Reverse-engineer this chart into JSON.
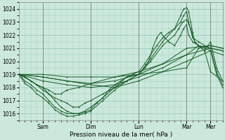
{
  "title": "",
  "xlabel": "Pression niveau de la mer( hPa )",
  "bg_color": "#cce8dc",
  "grid_color": "#99ccb8",
  "line_color": "#1a5c2a",
  "ylim": [
    1015.5,
    1024.5
  ],
  "yticks": [
    1016,
    1017,
    1018,
    1019,
    1020,
    1021,
    1022,
    1023,
    1024
  ],
  "day_labels": [
    "Sam",
    "Dim",
    "Lun",
    "Mar",
    "Mer"
  ],
  "day_positions": [
    24,
    72,
    120,
    168,
    192
  ],
  "xlim": [
    0,
    204
  ],
  "lines": [
    {
      "x": [
        0,
        6,
        12,
        18,
        24,
        30,
        36,
        42,
        48,
        54,
        60,
        66,
        72,
        78,
        84,
        90,
        96,
        102,
        108,
        114,
        120,
        126,
        132,
        138,
        144,
        150,
        156,
        162,
        165,
        168,
        170,
        172,
        174,
        176,
        180,
        186,
        192,
        198,
        204
      ],
      "y": [
        1019.0,
        1018.8,
        1018.5,
        1018.2,
        1018.0,
        1017.5,
        1017.0,
        1016.5,
        1016.2,
        1016.0,
        1016.0,
        1016.1,
        1016.3,
        1016.8,
        1017.2,
        1017.8,
        1018.2,
        1018.5,
        1018.8,
        1019.0,
        1019.2,
        1019.8,
        1020.5,
        1021.2,
        1021.8,
        1022.2,
        1022.5,
        1023.5,
        1024.0,
        1024.1,
        1023.8,
        1023.0,
        1022.2,
        1021.5,
        1021.2,
        1020.8,
        1021.5,
        1019.5,
        1018.5
      ]
    },
    {
      "x": [
        0,
        6,
        12,
        18,
        24,
        30,
        36,
        42,
        48,
        54,
        60,
        66,
        72,
        84,
        96,
        108,
        120,
        132,
        144,
        156,
        162,
        165,
        168,
        170,
        174,
        180,
        186,
        192,
        198,
        204
      ],
      "y": [
        1019.0,
        1018.5,
        1018.2,
        1017.8,
        1017.5,
        1017.0,
        1016.5,
        1016.2,
        1016.0,
        1016.0,
        1016.0,
        1016.2,
        1016.5,
        1017.2,
        1018.0,
        1018.8,
        1019.0,
        1020.2,
        1021.5,
        1022.5,
        1023.0,
        1023.5,
        1023.8,
        1023.0,
        1021.8,
        1021.5,
        1021.2,
        1021.0,
        1019.2,
        1018.2
      ]
    },
    {
      "x": [
        0,
        6,
        12,
        18,
        24,
        30,
        36,
        42,
        48,
        54,
        60,
        66,
        72,
        84,
        96,
        108,
        120,
        132,
        144,
        156,
        160,
        164,
        168,
        172,
        176,
        180,
        186,
        192,
        198,
        204
      ],
      "y": [
        1019.0,
        1018.3,
        1018.0,
        1017.5,
        1017.2,
        1016.8,
        1016.3,
        1016.0,
        1015.8,
        1015.8,
        1015.9,
        1016.0,
        1016.2,
        1017.0,
        1017.8,
        1018.5,
        1019.0,
        1020.0,
        1021.2,
        1022.0,
        1022.5,
        1023.0,
        1023.2,
        1022.5,
        1021.5,
        1021.2,
        1021.0,
        1020.8,
        1019.0,
        1018.0
      ]
    },
    {
      "x": [
        0,
        24,
        48,
        72,
        96,
        120,
        144,
        168,
        192,
        204
      ],
      "y": [
        1019.0,
        1018.8,
        1018.5,
        1018.3,
        1018.5,
        1019.0,
        1019.8,
        1021.0,
        1021.2,
        1021.0
      ]
    },
    {
      "x": [
        0,
        24,
        48,
        72,
        96,
        120,
        144,
        168,
        192,
        204
      ],
      "y": [
        1019.0,
        1018.5,
        1018.2,
        1018.0,
        1018.2,
        1018.8,
        1019.5,
        1020.5,
        1021.0,
        1020.8
      ]
    },
    {
      "x": [
        0,
        24,
        48,
        72,
        96,
        120,
        144,
        168,
        192,
        204
      ],
      "y": [
        1019.0,
        1018.8,
        1018.5,
        1018.2,
        1018.0,
        1018.5,
        1019.2,
        1020.0,
        1020.8,
        1020.5
      ]
    },
    {
      "x": [
        0,
        24,
        48,
        72,
        96,
        120,
        144,
        168,
        180,
        192,
        204
      ],
      "y": [
        1019.0,
        1019.0,
        1018.8,
        1018.8,
        1018.8,
        1019.0,
        1019.2,
        1019.5,
        1021.0,
        1021.2,
        1021.0
      ]
    },
    {
      "x": [
        0,
        12,
        18,
        24,
        30,
        36,
        42,
        48,
        60,
        72,
        96,
        120,
        144,
        168,
        180,
        192,
        204
      ],
      "y": [
        1019.0,
        1018.5,
        1018.2,
        1018.0,
        1017.8,
        1017.5,
        1017.5,
        1017.8,
        1018.0,
        1018.3,
        1018.8,
        1019.2,
        1019.8,
        1020.5,
        1021.2,
        1021.0,
        1020.8
      ]
    },
    {
      "x": [
        0,
        6,
        12,
        18,
        24,
        30,
        36,
        42,
        48,
        54,
        60,
        66,
        72,
        84,
        96,
        108,
        120,
        126,
        130,
        134,
        138,
        142,
        146,
        150,
        156,
        162,
        165,
        168,
        170,
        174,
        180,
        186,
        192,
        204
      ],
      "y": [
        1019.0,
        1018.8,
        1018.5,
        1018.2,
        1017.8,
        1017.5,
        1017.2,
        1017.0,
        1016.8,
        1016.5,
        1016.5,
        1016.8,
        1017.0,
        1017.5,
        1018.0,
        1018.5,
        1019.0,
        1019.5,
        1020.0,
        1021.0,
        1021.8,
        1022.2,
        1021.8,
        1021.5,
        1021.2,
        1022.0,
        1022.5,
        1022.8,
        1022.0,
        1021.5,
        1021.2,
        1020.8,
        1019.2,
        1018.5
      ]
    }
  ]
}
